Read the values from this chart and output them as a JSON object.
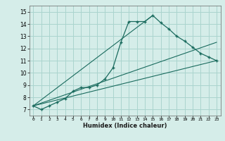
{
  "xlabel": "Humidex (Indice chaleur)",
  "bg_color": "#d5ede9",
  "grid_color": "#aad4ce",
  "line_color": "#1a6b5e",
  "xlim": [
    -0.5,
    23.5
  ],
  "ylim": [
    6.5,
    15.5
  ],
  "xticks": [
    0,
    1,
    2,
    3,
    4,
    5,
    6,
    7,
    8,
    9,
    10,
    11,
    12,
    13,
    14,
    15,
    16,
    17,
    18,
    19,
    20,
    21,
    22,
    23
  ],
  "yticks": [
    7,
    8,
    9,
    10,
    11,
    12,
    13,
    14,
    15
  ],
  "main_x": [
    0,
    1,
    2,
    3,
    4,
    5,
    6,
    7,
    8,
    9,
    10,
    11,
    12,
    13,
    14,
    15,
    16,
    17,
    18,
    19,
    20,
    21,
    22,
    23
  ],
  "main_y": [
    7.3,
    7.0,
    7.3,
    7.6,
    7.9,
    8.5,
    8.8,
    8.8,
    9.0,
    9.5,
    10.4,
    12.5,
    14.2,
    14.2,
    14.2,
    14.7,
    14.1,
    13.6,
    13.0,
    12.6,
    12.1,
    11.6,
    11.3,
    11.0
  ],
  "line2_x": [
    0,
    23
  ],
  "line2_y": [
    7.3,
    11.0
  ],
  "line3_x": [
    0,
    23
  ],
  "line3_y": [
    7.3,
    12.5
  ],
  "line4_x": [
    0,
    15
  ],
  "line4_y": [
    7.3,
    14.7
  ]
}
